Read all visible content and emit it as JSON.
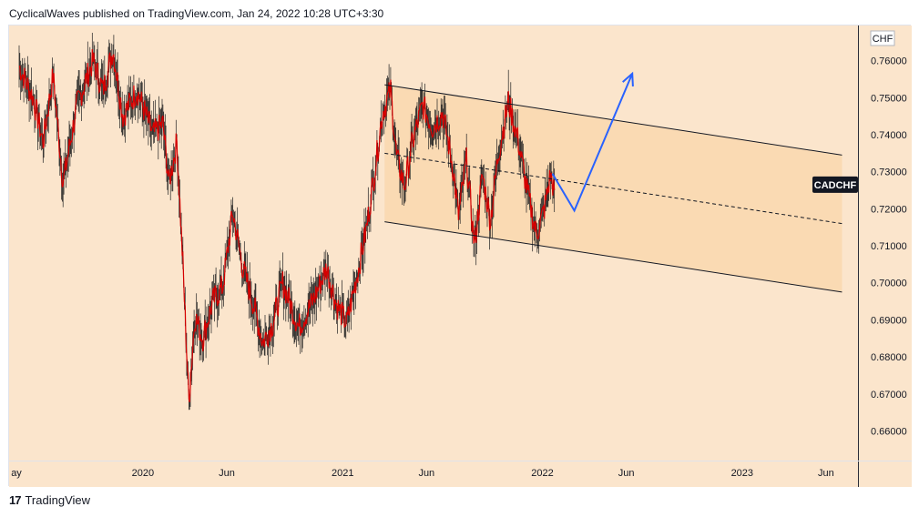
{
  "header": {
    "text": "CyclicalWaves published on TradingView.com, Jan 24, 2022 10:28 UTC+3:30"
  },
  "footer": {
    "logo": "17",
    "brand": "TradingView"
  },
  "colors": {
    "background": "#fbe5cc",
    "channel_fill": "#fad8b0",
    "candle": "#d60000",
    "wick": "#222222",
    "forecast": "#2962ff",
    "line": "#131722"
  },
  "chart_data": {
    "type": "line",
    "symbol": "CADCHF",
    "currency": "CHF",
    "y_ticks": [
      "0.76000",
      "0.75000",
      "0.74000",
      "0.73000",
      "0.72000",
      "0.71000",
      "0.70000",
      "0.69000",
      "0.68000",
      "0.67000",
      "0.66000"
    ],
    "x_ticks": [
      "ay",
      "2020",
      "Jun",
      "2021",
      "Jun",
      "2022",
      "Jun",
      "2023",
      "Jun"
    ],
    "ylim": [
      0.652,
      0.7695
    ],
    "series": [
      {
        "values": [
          [
            2019.38,
            0.7585
          ],
          [
            2019.45,
            0.75
          ],
          [
            2019.5,
            0.738
          ],
          [
            2019.55,
            0.756
          ],
          [
            2019.6,
            0.727
          ],
          [
            2019.67,
            0.748
          ],
          [
            2019.75,
            0.76
          ],
          [
            2019.8,
            0.752
          ],
          [
            2019.85,
            0.763
          ],
          [
            2019.9,
            0.745
          ],
          [
            2019.97,
            0.752
          ],
          [
            2020.05,
            0.74
          ],
          [
            2020.1,
            0.743
          ],
          [
            2020.13,
            0.727
          ],
          [
            2020.17,
            0.738
          ],
          [
            2020.2,
            0.705
          ],
          [
            2020.23,
            0.668
          ],
          [
            2020.26,
            0.691
          ],
          [
            2020.3,
            0.685
          ],
          [
            2020.35,
            0.695
          ],
          [
            2020.4,
            0.699
          ],
          [
            2020.45,
            0.719
          ],
          [
            2020.5,
            0.704
          ],
          [
            2020.55,
            0.695
          ],
          [
            2020.6,
            0.684
          ],
          [
            2020.65,
            0.689
          ],
          [
            2020.7,
            0.7
          ],
          [
            2020.78,
            0.688
          ],
          [
            2020.85,
            0.695
          ],
          [
            2020.92,
            0.704
          ],
          [
            2020.97,
            0.694
          ],
          [
            2021.02,
            0.689
          ],
          [
            2021.08,
            0.704
          ],
          [
            2021.12,
            0.715
          ],
          [
            2021.16,
            0.73
          ],
          [
            2021.2,
            0.746
          ],
          [
            2021.24,
            0.752
          ],
          [
            2021.27,
            0.734
          ],
          [
            2021.31,
            0.726
          ],
          [
            2021.35,
            0.738
          ],
          [
            2021.4,
            0.748
          ],
          [
            2021.45,
            0.742
          ],
          [
            2021.5,
            0.746
          ],
          [
            2021.55,
            0.732
          ],
          [
            2021.58,
            0.718
          ],
          [
            2021.62,
            0.733
          ],
          [
            2021.66,
            0.71
          ],
          [
            2021.7,
            0.729
          ],
          [
            2021.74,
            0.717
          ],
          [
            2021.78,
            0.735
          ],
          [
            2021.83,
            0.749
          ],
          [
            2021.88,
            0.738
          ],
          [
            2021.92,
            0.726
          ],
          [
            2021.97,
            0.713
          ],
          [
            2022.01,
            0.72
          ],
          [
            2022.04,
            0.729
          ],
          [
            2022.06,
            0.725
          ]
        ]
      }
    ],
    "channel": {
      "upper": [
        [
          2021.21,
          0.7535
        ],
        [
          2023.5,
          0.7345
        ]
      ],
      "middle": [
        [
          2021.21,
          0.735
        ],
        [
          2023.5,
          0.716
        ]
      ],
      "lower": [
        [
          2021.21,
          0.7165
        ],
        [
          2023.5,
          0.6975
        ]
      ]
    },
    "forecast": [
      [
        2022.05,
        0.7295
      ],
      [
        2022.16,
        0.7195
      ],
      [
        2022.45,
        0.7565
      ]
    ],
    "last_price": 0.7265
  }
}
